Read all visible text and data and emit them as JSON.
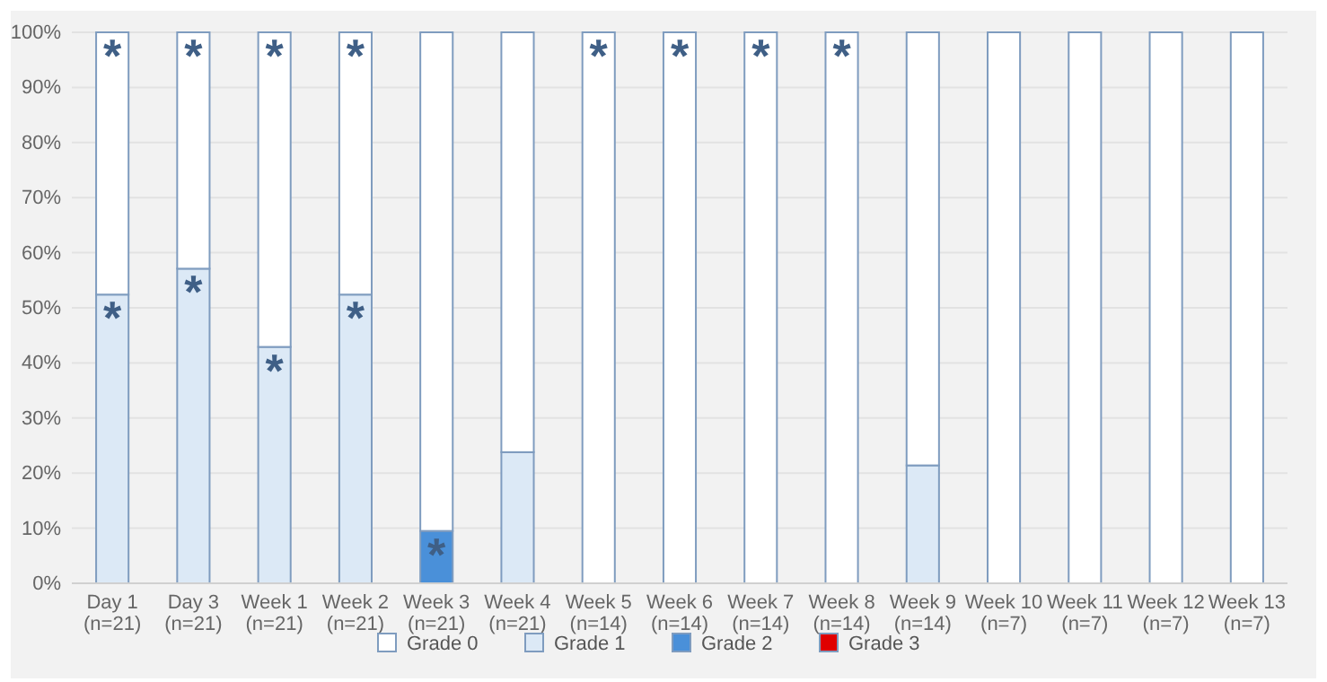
{
  "chart_data": {
    "type": "bar",
    "stacked": true,
    "categories": [
      "Day 1\n(n=21)",
      "Day 3\n(n=21)",
      "Week 1\n(n=21)",
      "Week 2\n(n=21)",
      "Week 3\n(n=21)",
      "Week 4\n(n=21)",
      "Week 5\n(n=14)",
      "Week 6\n(n=14)",
      "Week 7\n(n=14)",
      "Week 8\n(n=14)",
      "Week 9\n(n=14)",
      "Week 10\n(n=7)",
      "Week 11\n(n=7)",
      "Week 12\n(n=7)",
      "Week 13\n(n=7)"
    ],
    "series": [
      {
        "name": "Grade 3",
        "color": "#e00000",
        "values": [
          0,
          0,
          0,
          0,
          0,
          0,
          0,
          0,
          0,
          0,
          0,
          0,
          0,
          0,
          0
        ]
      },
      {
        "name": "Grade 2",
        "color": "#4a90d9",
        "values": [
          0,
          0,
          0,
          0,
          9.5,
          0,
          0,
          0,
          0,
          0,
          0,
          0,
          0,
          0,
          0
        ]
      },
      {
        "name": "Grade 1",
        "color": "#dce9f6",
        "values": [
          52.4,
          57.1,
          42.9,
          52.4,
          0,
          23.8,
          0,
          0,
          0,
          0,
          21.4,
          0,
          0,
          0,
          0
        ]
      },
      {
        "name": "Grade 0",
        "color": "#ffffff",
        "values": [
          47.6,
          42.9,
          57.1,
          47.6,
          90.5,
          76.2,
          100,
          100,
          100,
          100,
          78.6,
          100,
          100,
          100,
          100
        ]
      }
    ],
    "ylim": [
      0,
      100
    ],
    "yticks": [
      {
        "value": 0,
        "label": "0%"
      },
      {
        "value": 10,
        "label": "10%"
      },
      {
        "value": 20,
        "label": "20%"
      },
      {
        "value": 30,
        "label": "30%"
      },
      {
        "value": 40,
        "label": "40%"
      },
      {
        "value": 50,
        "label": "50%"
      },
      {
        "value": 60,
        "label": "60%"
      },
      {
        "value": 70,
        "label": "70%"
      },
      {
        "value": 80,
        "label": "80%"
      },
      {
        "value": 90,
        "label": "90%"
      },
      {
        "value": 100,
        "label": "100%"
      }
    ],
    "grid": "y",
    "legend": "bottom",
    "annotations": [
      {
        "text": "*",
        "x": "Day 1\n(n=21)",
        "y": 100
      },
      {
        "text": "*",
        "x": "Day 1\n(n=21)",
        "y": 52.4
      },
      {
        "text": "*",
        "x": "Day 3\n(n=21)",
        "y": 100
      },
      {
        "text": "*",
        "x": "Day 3\n(n=21)",
        "y": 57.1
      },
      {
        "text": "*",
        "x": "Week 1\n(n=21)",
        "y": 100
      },
      {
        "text": "*",
        "x": "Week 1\n(n=21)",
        "y": 42.9
      },
      {
        "text": "*",
        "x": "Week 2\n(n=21)",
        "y": 100
      },
      {
        "text": "*",
        "x": "Week 2\n(n=21)",
        "y": 52.4
      },
      {
        "text": "*",
        "x": "Week 3\n(n=21)",
        "y": 9.5
      },
      {
        "text": "*",
        "x": "Week 5\n(n=14)",
        "y": 100
      },
      {
        "text": "*",
        "x": "Week 6\n(n=14)",
        "y": 100
      },
      {
        "text": "*",
        "x": "Week 7\n(n=14)",
        "y": 100
      },
      {
        "text": "*",
        "x": "Week 8\n(n=14)",
        "y": 100
      }
    ]
  }
}
